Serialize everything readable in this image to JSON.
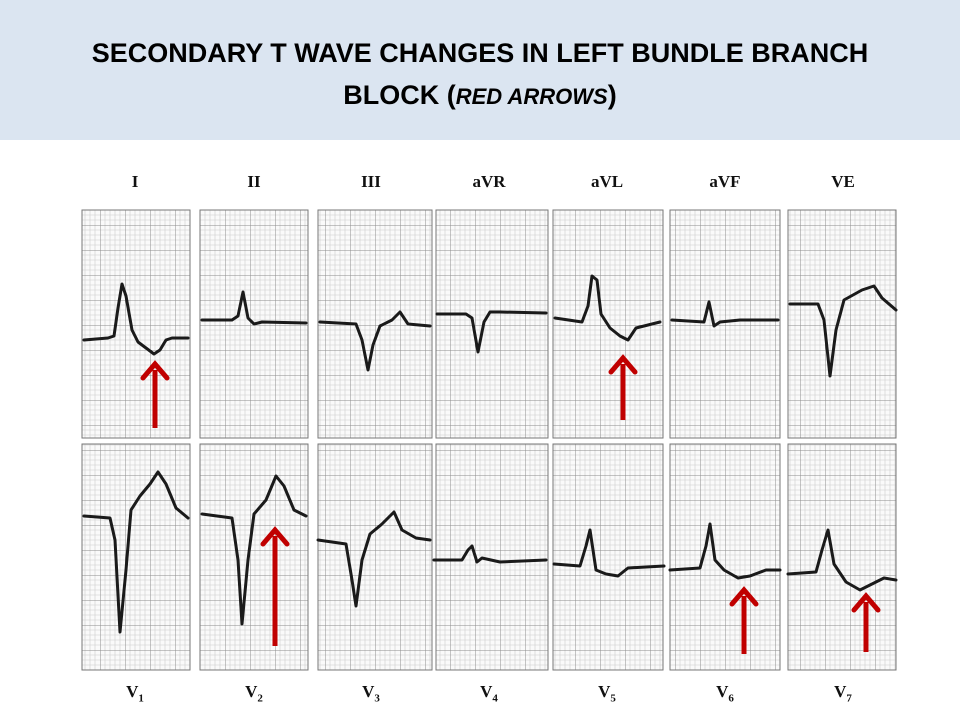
{
  "slide": {
    "title_line1": "SECONDARY T WAVE CHANGES  IN LEFT BUNDLE BRANCH",
    "title_line2_start": "BLOCK (",
    "title_line2_italic": "RED ARROWS",
    "title_line2_end": ")"
  },
  "top_row": {
    "leads": [
      {
        "label": "I",
        "arrow": true
      },
      {
        "label": "II",
        "arrow": false
      },
      {
        "label": "III",
        "arrow": false
      },
      {
        "label": "aVR",
        "arrow": false
      },
      {
        "label": "aVL",
        "arrow": true
      },
      {
        "label": "aVF",
        "arrow": false
      },
      {
        "label": "VE",
        "arrow": false
      }
    ]
  },
  "bottom_row": {
    "leads": [
      {
        "prefix": "V",
        "sub": "1",
        "arrow": false
      },
      {
        "prefix": "V",
        "sub": "2",
        "arrow": true
      },
      {
        "prefix": "V",
        "sub": "3",
        "arrow": false
      },
      {
        "prefix": "V",
        "sub": "4",
        "arrow": false
      },
      {
        "prefix": "V",
        "sub": "5",
        "arrow": false
      },
      {
        "prefix": "V",
        "sub": "6",
        "arrow": true
      },
      {
        "prefix": "V",
        "sub": "7",
        "arrow": true
      }
    ]
  },
  "colors": {
    "header_bg": "#dbe5f1",
    "grid_minor": "#c9c9c9",
    "grid_major": "#8a8a8a",
    "trace": "#1a1a1a",
    "arrow": "#c00000"
  }
}
